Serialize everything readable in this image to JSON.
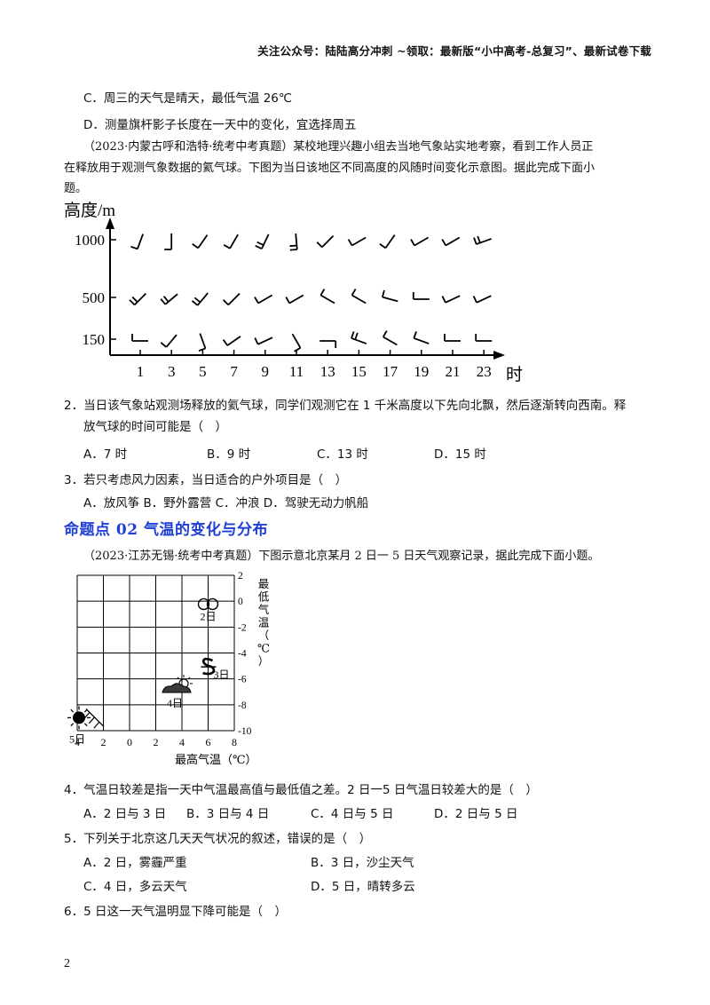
{
  "header": {
    "text": "关注公众号：陆陆高分冲刺   ~领取：最新版“小中高考-总复习”、最新试卷下载"
  },
  "prev_options": {
    "C": "C．周三的天气是晴天，最低气温 26℃",
    "D": "D．测量旗杆影子长度在一天中的变化，宜选择周五"
  },
  "intro1": {
    "line1": "（2023·内蒙古呼和浩特·统考中考真题）某校地理兴趣小组去当地气象站实地考察，看到工作人员正",
    "line2": "在释放用于观测气象数据的氦气球。下图为当日该地区不同高度的风随时间变化示意图。据此完成下面小",
    "line3": "题。"
  },
  "chart_data": [
    {
      "type": "wind-barb-diagram",
      "ylabel": "高度/m",
      "xlabel": "时",
      "y_ticks": [
        "1000",
        "500",
        "150"
      ],
      "x_ticks": [
        "1",
        "3",
        "5",
        "7",
        "9",
        "11",
        "13",
        "15",
        "17",
        "19",
        "21",
        "23"
      ],
      "wind_direction_deg": {
        "1000": [
          200,
          180,
          215,
          210,
          205,
          175,
          225,
          240,
          215,
          240,
          240,
          250
        ],
        "500": [
          225,
          230,
          220,
          225,
          240,
          240,
          300,
          300,
          285,
          270,
          245,
          245
        ],
        "150": [
          270,
          220,
          160,
          235,
          245,
          150,
          90,
          290,
          300,
          290,
          270,
          270
        ]
      },
      "barbs_count": {
        "1000": [
          1,
          1,
          1,
          1,
          2,
          2,
          1,
          1,
          1,
          1,
          1,
          2
        ],
        "500": [
          2,
          2,
          2,
          1,
          1,
          1,
          1,
          1,
          1,
          1,
          1,
          1
        ],
        "150": [
          1,
          1,
          1,
          1,
          1,
          1,
          1,
          2,
          1,
          1,
          1,
          1
        ]
      }
    },
    {
      "type": "scatter",
      "xlabel": "最高气温（℃）",
      "ylabel": "最低气温（℃）",
      "x_ticks": [
        "4",
        "2",
        "0",
        "2",
        "4",
        "6",
        "8"
      ],
      "y_ticks": [
        "2",
        "0",
        "-2",
        "-4",
        "-6",
        "-8",
        "-10"
      ],
      "xlim": [
        -4,
        8
      ],
      "ylim": [
        -10,
        2
      ],
      "points": [
        {
          "label": "2日",
          "x": 6,
          "y": -0.5,
          "weather": "haze"
        },
        {
          "label": "3日",
          "x": 6,
          "y": -5,
          "weather": "sandstorm"
        },
        {
          "label": "4日",
          "x": 4,
          "y": -6.5,
          "weather": "cloudy"
        },
        {
          "label": "5日",
          "x": -4,
          "y": -9,
          "weather": "sunny-then-cloudy"
        }
      ]
    }
  ],
  "q2": {
    "stem1": "2．当日该气象站观测场释放的氦气球，同学们观测它在 1 千米高度以下先向北飘，然后逐渐转向西南。释",
    "stem2": "放气球的时间可能是（　）",
    "A": "A．7 时",
    "B": "B．9 时",
    "C": "C．13 时",
    "D": "D．15 时"
  },
  "q3": {
    "stem": "3．若只考虑风力因素，当日适合的户外项目是（　）",
    "options": "A．放风筝    B．野外露营    C．冲浪    D．驾驶无动力帆船"
  },
  "section": {
    "title": "命题点 02  气温的变化与分布"
  },
  "intro2": {
    "line1": "（2023·江苏无锡·统考中考真题）下图示意北京某月 2 日一 5 日天气观察记录，据此完成下面小题。"
  },
  "q4": {
    "stem": "4．气温日较差是指一天中气温最高值与最低值之差。2 日一5 日气温日较差大的是（　）",
    "A": "A．2 日与 3 日",
    "B": "B．3 日与 4 日",
    "C": "C．4 日与 5 日",
    "D": "D．2 日与 5 日"
  },
  "q5": {
    "stem": "5．下列关于北京这几天天气状况的叙述，错误的是（　）",
    "A": "A．2 日，雾霾严重",
    "B": "B．3 日，沙尘天气",
    "C": "C．4 日，多云天气",
    "D": "D．5 日，晴转多云"
  },
  "q6": {
    "stem": "6．5 日这一天气温明显下降可能是（　）"
  },
  "footer": {
    "page": "2"
  }
}
